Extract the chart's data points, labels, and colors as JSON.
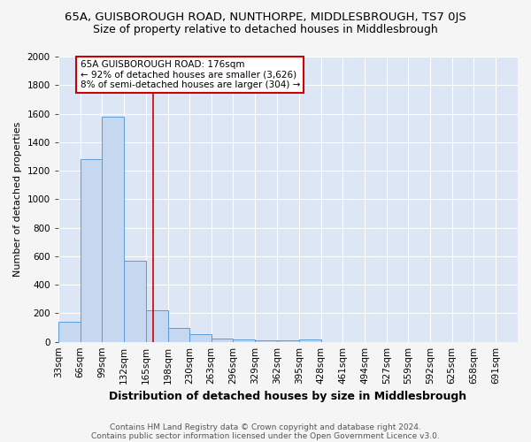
{
  "title1": "65A, GUISBOROUGH ROAD, NUNTHORPE, MIDDLESBROUGH, TS7 0JS",
  "title2": "Size of property relative to detached houses in Middlesbrough",
  "xlabel": "Distribution of detached houses by size in Middlesbrough",
  "ylabel": "Number of detached properties",
  "bins": [
    "33sqm",
    "66sqm",
    "99sqm",
    "132sqm",
    "165sqm",
    "198sqm",
    "230sqm",
    "263sqm",
    "296sqm",
    "329sqm",
    "362sqm",
    "395sqm",
    "428sqm",
    "461sqm",
    "494sqm",
    "527sqm",
    "559sqm",
    "592sqm",
    "625sqm",
    "658sqm",
    "691sqm"
  ],
  "bin_edges": [
    33,
    66,
    99,
    132,
    165,
    198,
    230,
    263,
    296,
    329,
    362,
    395,
    428,
    461,
    494,
    527,
    559,
    592,
    625,
    658,
    691,
    724
  ],
  "counts": [
    140,
    1280,
    1580,
    570,
    220,
    100,
    55,
    25,
    15,
    10,
    10,
    15,
    0,
    0,
    0,
    0,
    0,
    0,
    0,
    0,
    0
  ],
  "bar_color": "#c5d8f0",
  "bar_edge_color": "#5b9bd5",
  "vline_x": 176,
  "vline_color": "#cc0000",
  "ylim": [
    0,
    2000
  ],
  "yticks": [
    0,
    200,
    400,
    600,
    800,
    1000,
    1200,
    1400,
    1600,
    1800,
    2000
  ],
  "annotation_title": "65A GUISBOROUGH ROAD: 176sqm",
  "annotation_line1": "← 92% of detached houses are smaller (3,626)",
  "annotation_line2": "8% of semi-detached houses are larger (304) →",
  "annotation_box_color": "#ffffff",
  "annotation_box_edge": "#cc0000",
  "footnote1": "Contains HM Land Registry data © Crown copyright and database right 2024.",
  "footnote2": "Contains public sector information licensed under the Open Government Licence v3.0.",
  "plot_bg_color": "#dce6f5",
  "fig_bg_color": "#f5f5f5",
  "grid_color": "#ffffff",
  "title1_fontsize": 9.5,
  "title2_fontsize": 9,
  "xlabel_fontsize": 9,
  "ylabel_fontsize": 8,
  "tick_fontsize": 7.5,
  "footnote_fontsize": 6.5
}
